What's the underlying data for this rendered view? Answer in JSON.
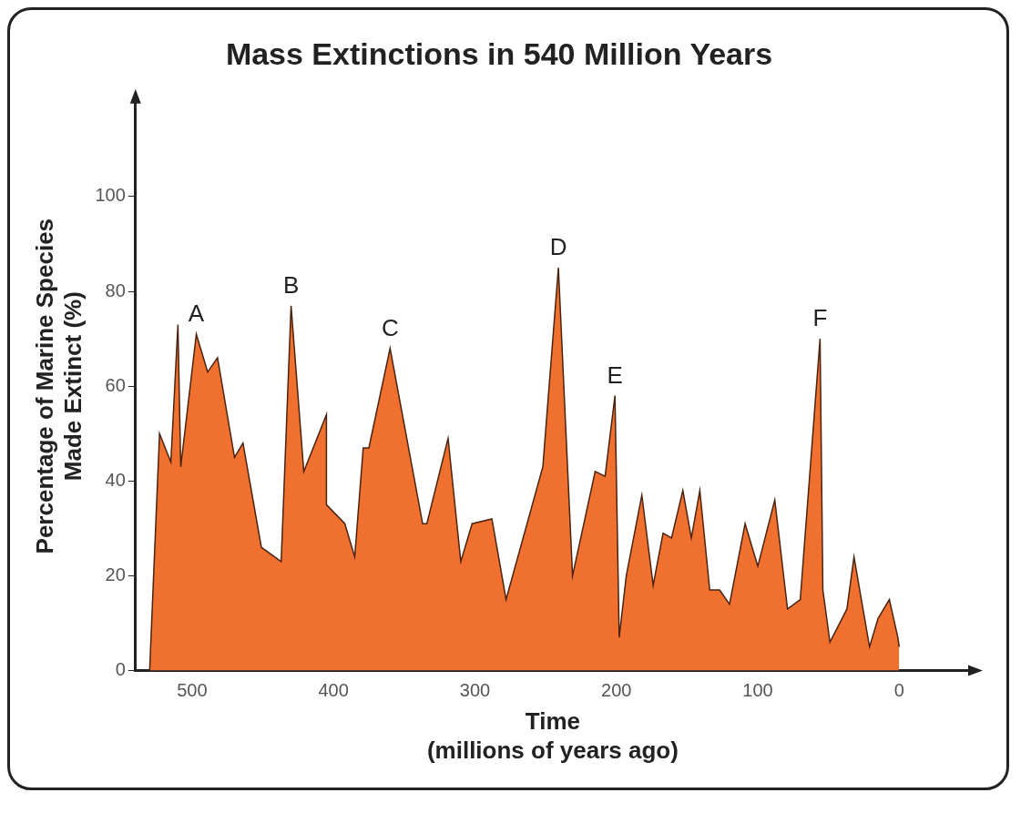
{
  "chart_data": {
    "type": "area",
    "title": "Mass Extinctions in 540 Million Years",
    "xlabel": "Time\n(millions of years ago)",
    "ylabel": "Percentage of Marine Species\nMade Extinct (%)",
    "x": [
      530,
      523,
      515,
      510,
      508,
      497,
      489,
      482,
      470,
      464,
      451,
      437,
      430,
      421,
      405,
      405,
      392,
      385,
      379,
      375,
      360,
      337,
      334,
      319,
      310,
      302,
      288,
      278,
      252,
      241,
      231,
      215,
      208,
      201,
      198,
      193,
      182,
      174,
      167,
      161,
      153,
      147,
      141,
      134,
      127,
      120,
      109,
      100,
      88,
      79,
      70,
      56,
      54,
      49,
      37,
      32,
      21,
      15,
      7,
      1,
      0
    ],
    "series": [
      {
        "color": "#f07030",
        "values": [
          0,
          50,
          44,
          73,
          43,
          71,
          63,
          66,
          45,
          48,
          26,
          23,
          77,
          42,
          54,
          35,
          31,
          24,
          47,
          47,
          68,
          31,
          31,
          49,
          23,
          31,
          32,
          15,
          43,
          85,
          20,
          42,
          41,
          58,
          7,
          20,
          37,
          18,
          29,
          28,
          38,
          28,
          38,
          17,
          17,
          14,
          31,
          22,
          36,
          13,
          15,
          70,
          17,
          6,
          13,
          24,
          5,
          11,
          15,
          7,
          5
        ]
      }
    ],
    "xlim": [
      540,
      -50
    ],
    "xticks": [
      500,
      400,
      300,
      200,
      100,
      0
    ],
    "ylim": [
      0,
      120
    ],
    "yticks": [
      0,
      20,
      40,
      60,
      80,
      100
    ],
    "grid": false,
    "legend": false,
    "marker": "none",
    "annotations": [
      {
        "text": "A",
        "x": 497,
        "y": 71
      },
      {
        "text": "B",
        "x": 430,
        "y": 77
      },
      {
        "text": "C",
        "x": 360,
        "y": 68
      },
      {
        "text": "D",
        "x": 241,
        "y": 85
      },
      {
        "text": "E",
        "x": 201,
        "y": 58
      },
      {
        "text": "F",
        "x": 56,
        "y": 70
      }
    ]
  }
}
